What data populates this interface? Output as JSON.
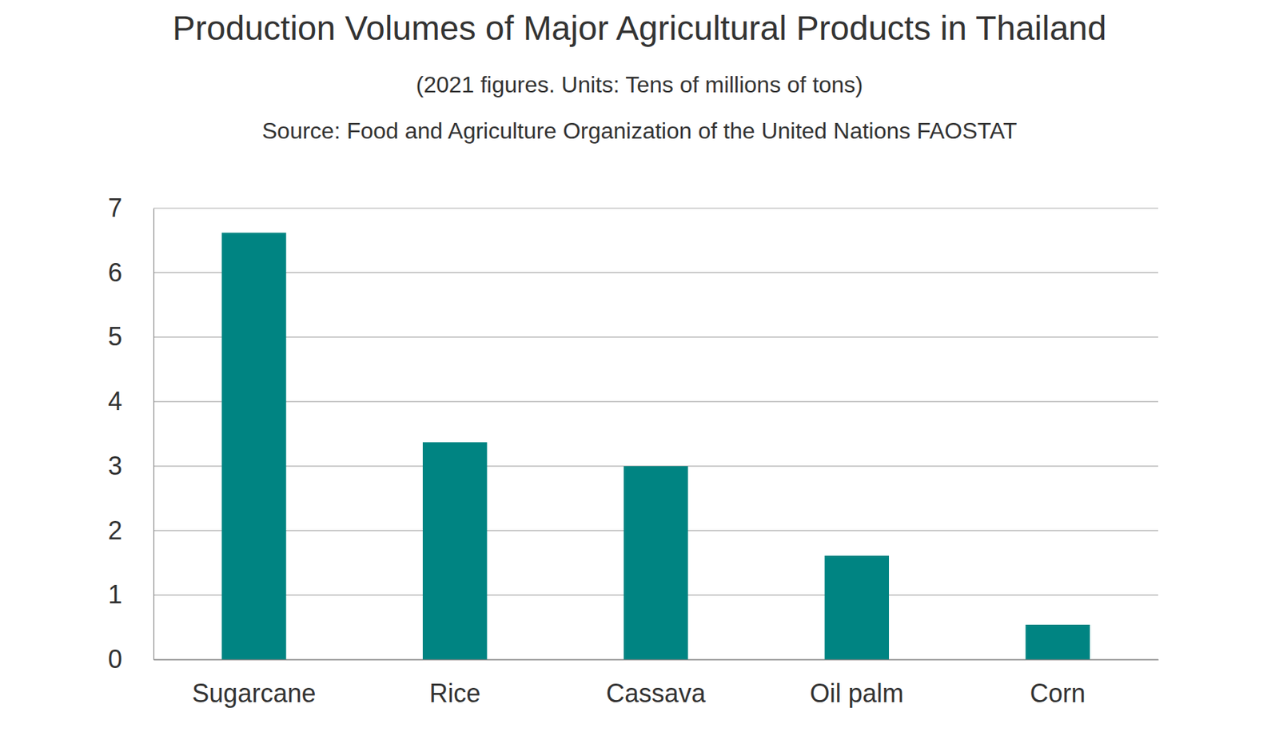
{
  "chart_data": {
    "type": "bar",
    "title": "Production Volumes of Major Agricultural Products in Thailand",
    "subtitle": "(2021 figures. Units: Tens of millions of tons)",
    "source": "Source: Food and Agriculture Organization of the United Nations FAOSTAT",
    "categories": [
      "Sugarcane",
      "Rice",
      "Cassava",
      "Oil palm",
      "Corn"
    ],
    "values": [
      6.62,
      3.37,
      3.0,
      1.61,
      0.54
    ],
    "color": "#008482",
    "ylim": [
      0,
      7
    ],
    "yticks": [
      0,
      1,
      2,
      3,
      4,
      5,
      6,
      7
    ],
    "grid": true
  }
}
